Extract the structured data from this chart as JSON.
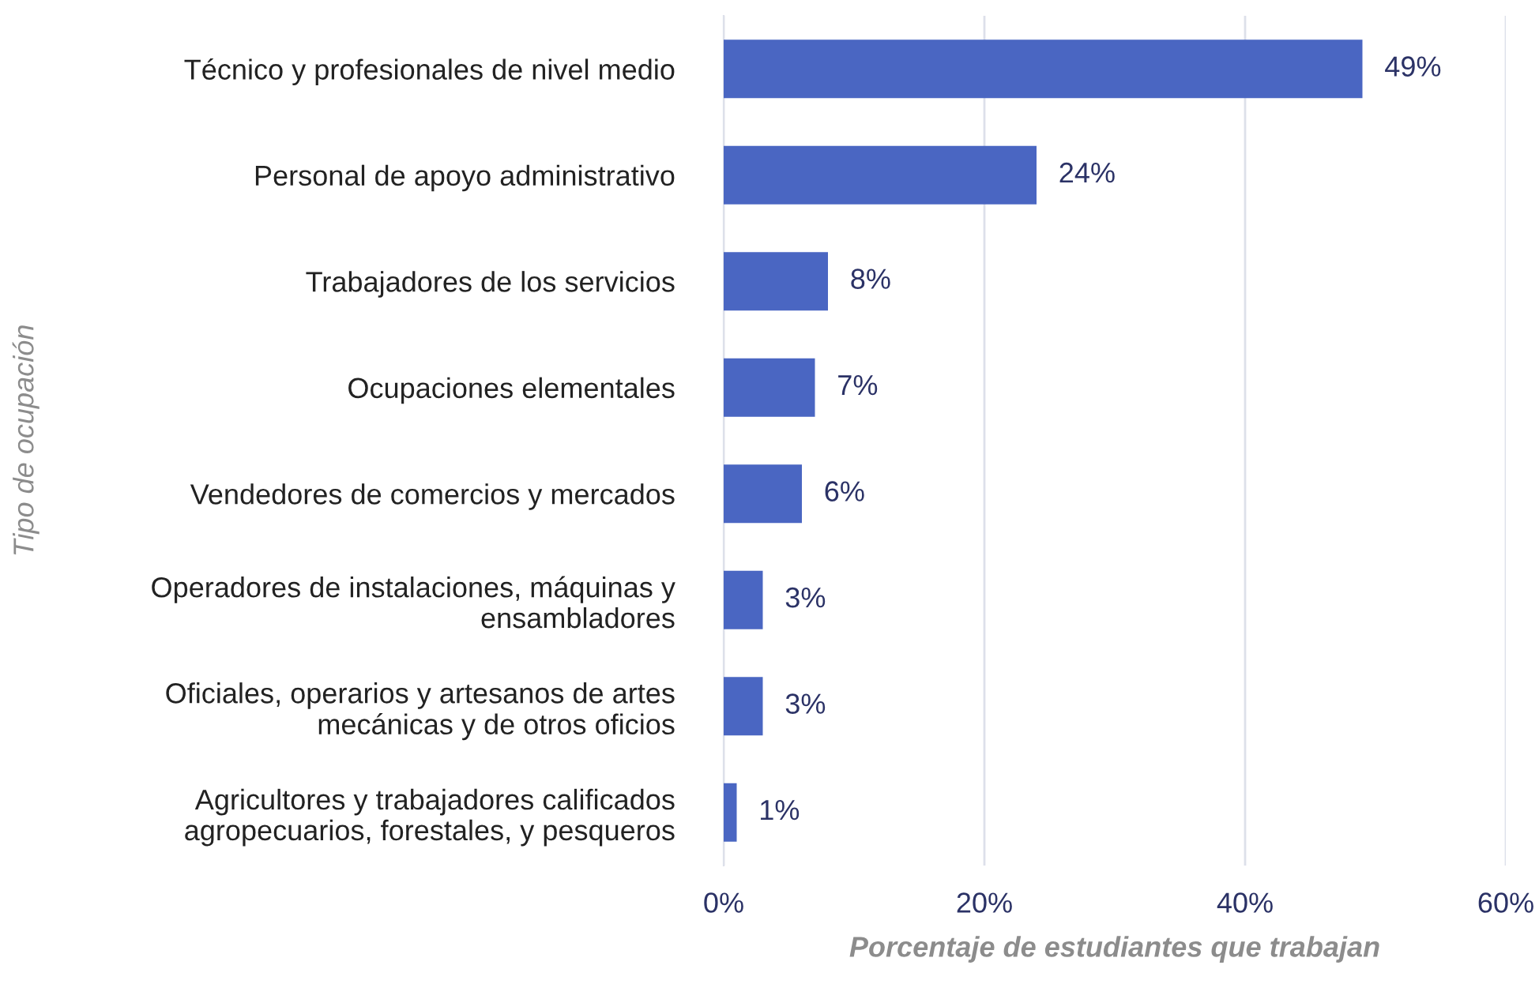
{
  "chart_data": {
    "type": "bar",
    "orientation": "horizontal",
    "xlabel": "Porcentaje de estudiantes que trabajan",
    "ylabel": "Tipo de ocupación",
    "categories": [
      "Técnico y profesionales de nivel medio",
      "Personal de apoyo administrativo",
      "Trabajadores de los servicios",
      "Ocupaciones elementales",
      "Vendedores de comercios y mercados",
      "Operadores de instalaciones, máquinas y\nensambladores",
      "Oficiales, operarios y artesanos de artes\nmecánicas y de otros oficios",
      "Agricultores y trabajadores calificados\nagropecuarios, forestales, y pesqueros"
    ],
    "values": [
      49,
      24,
      8,
      7,
      6,
      3,
      3,
      1
    ],
    "value_labels": [
      "49%",
      "24%",
      "8%",
      "7%",
      "6%",
      "3%",
      "3%",
      "1%"
    ],
    "color": "#4a66c2",
    "xlim": [
      0,
      60
    ],
    "xticks": [
      {
        "value": 0,
        "label": "0%"
      },
      {
        "value": 20,
        "label": "20%"
      },
      {
        "value": 40,
        "label": "40%"
      },
      {
        "value": 60,
        "label": "60%"
      }
    ],
    "grid": "x",
    "legend": false
  }
}
